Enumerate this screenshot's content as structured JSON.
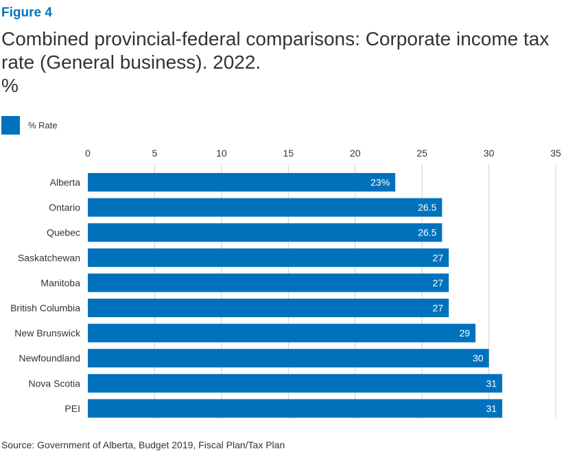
{
  "figure_label": "Figure 4",
  "title": "Combined provincial-federal comparisons: Corporate income tax rate (General business). 2022.",
  "unit": "%",
  "source": "Source: Government of Alberta, Budget 2019, Fiscal Plan/Tax Plan",
  "colors": {
    "bar": "#0072bc",
    "grid": "#cccccc",
    "label_inside": "#ffffff"
  },
  "chart_data": {
    "type": "bar",
    "orientation": "horizontal",
    "categories": [
      "Alberta",
      "Ontario",
      "Quebec",
      "Saskatchewan",
      "Manitoba",
      "British Columbia",
      "New Brunswick",
      "Newfoundland",
      "Nova Scotia",
      "PEI"
    ],
    "series": [
      {
        "name": "% Rate",
        "values": [
          23,
          26.5,
          26.5,
          27,
          27,
          27,
          29,
          30,
          31,
          31
        ],
        "data_labels": [
          "23%",
          "26.5",
          "26.5",
          "27",
          "27",
          "27",
          "29",
          "30",
          "31",
          "31"
        ]
      }
    ],
    "xlim": [
      0,
      35
    ],
    "xticks": [
      0,
      5,
      10,
      15,
      20,
      25,
      30,
      35
    ],
    "x_axis_position": "top",
    "grid": true,
    "legend_position": "top-left"
  }
}
